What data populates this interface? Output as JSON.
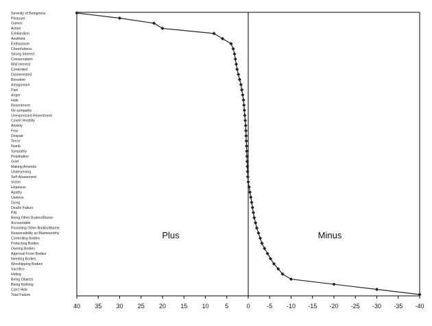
{
  "chart_data": {
    "type": "line",
    "orientation": "horizontal",
    "xlim": [
      40,
      -40
    ],
    "x_ticks": [
      "40",
      "35",
      "30",
      "25",
      "20",
      "15",
      "10",
      "5",
      "0",
      "-5",
      "-10",
      "-15",
      "-20",
      "-25",
      "-30",
      "-35",
      "-40"
    ],
    "annotations": {
      "plus": "Plus",
      "minus": "Minus"
    },
    "grid": false,
    "legend": "none",
    "series_color": "#222222",
    "categories": [
      "Serenity of Beingness",
      "Pleasure",
      "Games",
      "Action",
      "Exhilaration",
      "Aesthetic",
      "Enthusiasm",
      "Cheerfulness",
      "Strong Interest",
      "Conservatism",
      "Mild Interest",
      "Contented",
      "Disinterested",
      "Boredom",
      "Antagonism",
      "Pain",
      "Anger",
      "Hate",
      "Resentment",
      "No sympathy",
      "Unexpressed Resentment",
      "Covert Hostility",
      "Anxiety",
      "Fear",
      "Despair",
      "Terror",
      "Numb",
      "Sympathy",
      "Propitiation",
      "Grief",
      "Making Amends",
      "Undeserving",
      "Self-Abasement",
      "Victim",
      "Hopeless",
      "Apathy",
      "Useless",
      "Dying",
      "Death/ Failure",
      "Pity",
      "Being Other Bodies/Blame",
      "Accountable",
      "Punishing Other Bodies/Blame",
      "Responsibility as Blameworthy",
      "Controlling Bodies",
      "Protecting Bodies",
      "Owning Bodies",
      "Approval From Bodies",
      "Needing Bodies",
      "Worshipping Bodies",
      "Sacrifice",
      "Hiding",
      "Being Objects",
      "Being Nothing",
      "Can't Hide",
      "Total Failure"
    ],
    "values": [
      40,
      30,
      22,
      20,
      8,
      6,
      4,
      3.5,
      3.2,
      3,
      2.8,
      2.6,
      2.3,
      2,
      1.7,
      1.5,
      1.3,
      1.1,
      1,
      0.9,
      0.8,
      0.7,
      0.6,
      0.55,
      0.5,
      0.45,
      0.4,
      0.35,
      0.3,
      0.25,
      0.2,
      0.15,
      0.1,
      0,
      -0.2,
      -0.4,
      -0.6,
      -0.8,
      -1,
      -1.2,
      -1.4,
      -1.7,
      -2,
      -2.4,
      -2.8,
      -3.2,
      -3.8,
      -4.5,
      -5.2,
      -6,
      -7,
      -8,
      -10,
      -20,
      -30,
      -40
    ]
  }
}
